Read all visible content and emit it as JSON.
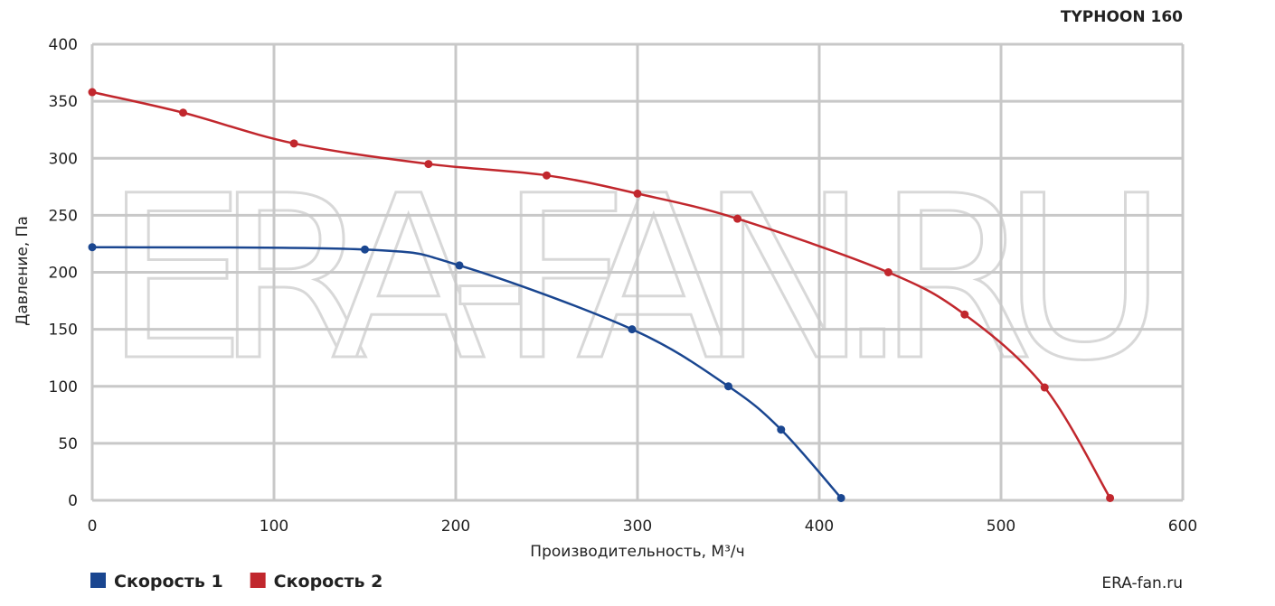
{
  "chart_data": {
    "type": "line",
    "title": "TYPHOON 160",
    "watermark": "ERA-FAN.RU",
    "source": "ERA-fan.ru",
    "x_label": "Производительность, М³/ч",
    "y_label": "Давление, Па",
    "xlim": [
      0,
      600
    ],
    "xticks": [
      0,
      100,
      200,
      300,
      400,
      500,
      600
    ],
    "ylim": [
      0,
      400
    ],
    "yticks": [
      0,
      50,
      100,
      150,
      200,
      250,
      300,
      350,
      400
    ],
    "grid": true,
    "legend": "bottom-left",
    "series": [
      {
        "name": "Скорость 1",
        "color": "#1a4690",
        "x": [
          0,
          150,
          202,
          297,
          350,
          379,
          412
        ],
        "values": [
          222,
          220,
          206,
          150,
          100,
          62,
          2
        ]
      },
      {
        "name": "Скорость 2",
        "color": "#c1272d",
        "x": [
          0,
          50,
          111,
          185,
          250,
          300,
          355,
          438,
          480,
          524,
          560
        ],
        "values": [
          358,
          340,
          313,
          295,
          285,
          269,
          247,
          200,
          163,
          99,
          2
        ]
      }
    ]
  }
}
